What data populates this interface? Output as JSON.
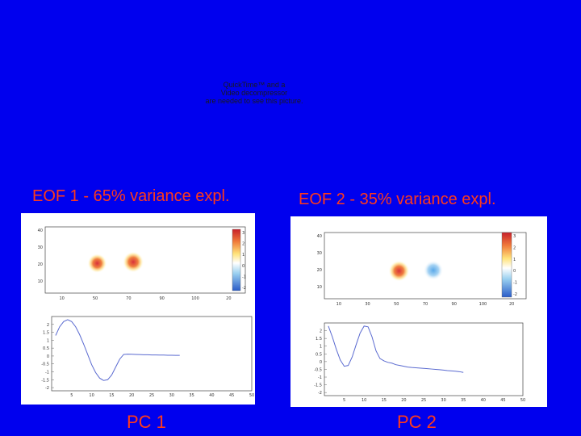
{
  "placeholder": {
    "lines": [
      "QuickTime™ and a",
      "Video decompressor",
      "are needed to see this picture."
    ]
  },
  "panels": [
    {
      "title": "EOF 1 - 65% variance expl.",
      "pc_label": "PC 1",
      "map": {
        "x_ticks": [
          "10",
          "50",
          "70",
          "90",
          "100",
          "20"
        ],
        "y_ticks": [
          "40",
          "30",
          "20",
          "10"
        ],
        "colorbar_ticks": [
          "3",
          "2",
          "1",
          "0",
          "-1",
          "-2"
        ],
        "blobs": [
          {
            "x": 0.26,
            "y": 0.55,
            "polarity": "positive",
            "strength": 0.75
          },
          {
            "x": 0.44,
            "y": 0.53,
            "polarity": "positive",
            "strength": 1.0
          }
        ]
      },
      "pc": {
        "x_ticks": [
          "5",
          "10",
          "15",
          "20",
          "25",
          "30",
          "35",
          "40",
          "45",
          "50"
        ],
        "y_ticks": [
          "2",
          "1.5",
          "1",
          "0.5",
          "0",
          "-0.5",
          "-1",
          "-1.5",
          "-2"
        ],
        "series": [
          [
            1,
            1.3
          ],
          [
            2,
            1.85
          ],
          [
            3,
            2.18
          ],
          [
            4,
            2.3
          ],
          [
            5,
            2.18
          ],
          [
            6,
            1.85
          ],
          [
            7,
            1.35
          ],
          [
            8,
            0.75
          ],
          [
            9,
            0.1
          ],
          [
            10,
            -0.55
          ],
          [
            11,
            -1.05
          ],
          [
            12,
            -1.4
          ],
          [
            13,
            -1.55
          ],
          [
            14,
            -1.5
          ],
          [
            15,
            -1.2
          ],
          [
            16,
            -0.7
          ],
          [
            17,
            -0.2
          ],
          [
            18,
            0.1
          ],
          [
            19,
            0.12
          ],
          [
            20,
            0.11
          ],
          [
            21,
            0.1
          ],
          [
            22,
            0.09
          ],
          [
            23,
            0.08
          ],
          [
            24,
            0.08
          ],
          [
            25,
            0.07
          ],
          [
            26,
            0.07
          ],
          [
            27,
            0.06
          ],
          [
            28,
            0.06
          ],
          [
            29,
            0.05
          ],
          [
            30,
            0.05
          ],
          [
            31,
            0.04
          ],
          [
            32,
            0.04
          ]
        ]
      }
    },
    {
      "title": "EOF 2 - 35% variance expl.",
      "pc_label": "PC 2",
      "map": {
        "x_ticks": [
          "10",
          "30",
          "50",
          "70",
          "90",
          "100",
          "20"
        ],
        "y_ticks": [
          "40",
          "30",
          "20",
          "10"
        ],
        "colorbar_ticks": [
          "3",
          "2",
          "1",
          "0",
          "-1",
          "-2"
        ],
        "blobs": [
          {
            "x": 0.37,
            "y": 0.58,
            "polarity": "positive",
            "strength": 1.0
          },
          {
            "x": 0.54,
            "y": 0.57,
            "polarity": "negative",
            "strength": 0.8
          }
        ]
      },
      "pc": {
        "x_ticks": [
          "5",
          "10",
          "15",
          "20",
          "25",
          "30",
          "35",
          "40",
          "45",
          "50"
        ],
        "y_ticks": [
          "2",
          "1.5",
          "1",
          "0.5",
          "0",
          "-0.5",
          "-1",
          "-1.5",
          "-2"
        ],
        "series": [
          [
            1,
            2.3
          ],
          [
            2,
            1.6
          ],
          [
            3,
            0.8
          ],
          [
            4,
            0.1
          ],
          [
            5,
            -0.3
          ],
          [
            6,
            -0.25
          ],
          [
            7,
            0.3
          ],
          [
            8,
            1.1
          ],
          [
            9,
            1.85
          ],
          [
            10,
            2.3
          ],
          [
            11,
            2.25
          ],
          [
            12,
            1.6
          ],
          [
            13,
            0.7
          ],
          [
            14,
            0.2
          ],
          [
            15,
            0.05
          ],
          [
            16,
            -0.05
          ],
          [
            17,
            -0.1
          ],
          [
            18,
            -0.2
          ],
          [
            19,
            -0.25
          ],
          [
            20,
            -0.3
          ],
          [
            21,
            -0.35
          ],
          [
            22,
            -0.38
          ],
          [
            23,
            -0.4
          ],
          [
            24,
            -0.42
          ],
          [
            25,
            -0.44
          ],
          [
            26,
            -0.46
          ],
          [
            27,
            -0.48
          ],
          [
            28,
            -0.5
          ],
          [
            29,
            -0.52
          ],
          [
            30,
            -0.55
          ],
          [
            31,
            -0.58
          ],
          [
            32,
            -0.6
          ],
          [
            33,
            -0.62
          ],
          [
            34,
            -0.65
          ],
          [
            35,
            -0.7
          ]
        ]
      }
    }
  ],
  "colors": {
    "background": "#0000ee",
    "title_text": "#ff3a1a",
    "line": "#5a6ad0",
    "positive": "#d8323a",
    "positive_mid": "#f08040",
    "positive_edge": "#ffe080",
    "negative": "#5aa8e8"
  }
}
